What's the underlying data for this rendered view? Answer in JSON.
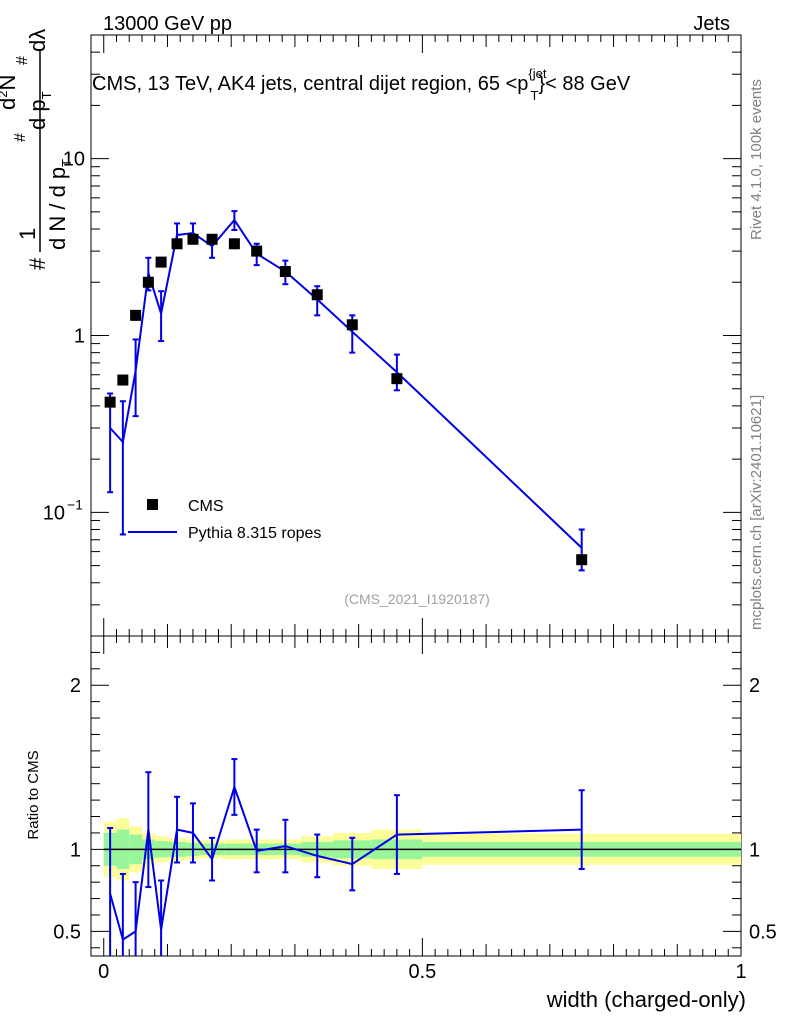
{
  "header": {
    "left": "13000 GeV pp",
    "right": "Jets"
  },
  "side_labels": {
    "rivet": "Rivet 4.1.0,  100k events",
    "mcplots": "mcplots.cern.ch [arXiv:2401.10621]"
  },
  "colors": {
    "mc": "#0000e6",
    "data": "#000000",
    "band_inner": "#99f599",
    "band_outer": "#fcfc9b"
  },
  "chart_data": [
    {
      "type": "line",
      "title": "CMS, 13 TeV, AK4 jets, central dijet region, 65 <p",
      "title_sup": "{jet",
      "title_sub": "T",
      "title_end": "}< 88 GeV",
      "ylabel_parts": [
        "#",
        "1",
        "d N / d p",
        "T",
        "#",
        "d p",
        "T",
        "d",
        "2",
        "N",
        "#",
        "dλ"
      ],
      "yscale": "log",
      "ylim": [
        0.02,
        50
      ],
      "xlim": [
        -0.02,
        1.0
      ],
      "yticks": [
        {
          "value": 10,
          "label": "10"
        },
        {
          "value": 1,
          "label": "1"
        },
        {
          "value": 0.1,
          "label": "10",
          "exp": "−1"
        }
      ],
      "watermark": "(CMS_2021_I1920187)",
      "legend": {
        "position": "bottom-left",
        "data_label": "CMS",
        "mc_label": "Pythia 8.315 ropes"
      },
      "series": [
        {
          "name": "CMS",
          "style": "markers",
          "x": [
            0.01,
            0.03,
            0.05,
            0.07,
            0.09,
            0.115,
            0.14,
            0.17,
            0.205,
            0.24,
            0.285,
            0.335,
            0.39,
            0.46,
            0.75
          ],
          "y": [
            0.42,
            0.56,
            1.3,
            2.0,
            2.6,
            3.3,
            3.5,
            3.5,
            3.3,
            3.0,
            2.3,
            1.7,
            1.15,
            0.57,
            0.054
          ]
        },
        {
          "name": "Pythia 8.315 ropes",
          "style": "line",
          "x": [
            0.01,
            0.03,
            0.05,
            0.07,
            0.09,
            0.115,
            0.14,
            0.17,
            0.205,
            0.24,
            0.285,
            0.335,
            0.39,
            0.46,
            0.75
          ],
          "y": [
            0.3,
            0.25,
            0.63,
            2.25,
            1.33,
            3.7,
            3.8,
            3.2,
            4.5,
            2.9,
            2.3,
            1.6,
            1.05,
            0.62,
            0.063
          ],
          "err_low": [
            0.17,
            0.175,
            0.28,
            0.45,
            0.4,
            0.5,
            0.45,
            0.45,
            0.55,
            0.4,
            0.35,
            0.3,
            0.25,
            0.13,
            0.016
          ],
          "err_high": [
            0.17,
            0.175,
            0.32,
            0.5,
            0.45,
            0.6,
            0.5,
            0.5,
            0.55,
            0.4,
            0.35,
            0.3,
            0.25,
            0.16,
            0.017
          ]
        }
      ]
    },
    {
      "type": "line",
      "ylabel": "Ratio to CMS",
      "xlabel": "width (charged-only)",
      "xlim": [
        -0.02,
        1.0
      ],
      "ylim": [
        0.35,
        2.3
      ],
      "xticks": [
        {
          "value": 0,
          "label": "0"
        },
        {
          "value": 0.5,
          "label": "0.5"
        },
        {
          "value": 1,
          "label": "1"
        }
      ],
      "yticks": [
        {
          "value": 0.5,
          "label": "0.5"
        },
        {
          "value": 1,
          "label": "1"
        },
        {
          "value": 2,
          "label": "2"
        }
      ],
      "reference_line": 1,
      "bands": {
        "bin_edges": [
          0,
          0.02,
          0.04,
          0.06,
          0.08,
          0.1,
          0.13,
          0.15,
          0.19,
          0.22,
          0.26,
          0.31,
          0.36,
          0.42,
          0.5,
          1.0
        ],
        "inner": [
          0.1,
          0.12,
          0.09,
          0.06,
          0.05,
          0.045,
          0.04,
          0.035,
          0.035,
          0.035,
          0.035,
          0.045,
          0.055,
          0.06,
          0.045
        ],
        "outer": [
          0.17,
          0.19,
          0.14,
          0.1,
          0.08,
          0.07,
          0.06,
          0.055,
          0.06,
          0.06,
          0.06,
          0.08,
          0.1,
          0.12,
          0.095
        ]
      },
      "ratio": {
        "x": [
          0.01,
          0.03,
          0.05,
          0.07,
          0.09,
          0.115,
          0.14,
          0.17,
          0.205,
          0.24,
          0.285,
          0.335,
          0.39,
          0.46,
          0.75
        ],
        "y": [
          0.73,
          0.45,
          0.5,
          1.12,
          0.51,
          1.12,
          1.1,
          0.94,
          1.38,
          0.99,
          1.02,
          0.96,
          0.91,
          1.09,
          1.12
        ],
        "err_low": [
          0.4,
          0.4,
          0.3,
          0.35,
          0.3,
          0.2,
          0.18,
          0.13,
          0.17,
          0.13,
          0.16,
          0.13,
          0.16,
          0.24,
          0.24
        ],
        "err_high": [
          0.4,
          0.4,
          0.3,
          0.35,
          0.3,
          0.2,
          0.18,
          0.13,
          0.17,
          0.13,
          0.16,
          0.13,
          0.16,
          0.24,
          0.24
        ]
      }
    }
  ]
}
